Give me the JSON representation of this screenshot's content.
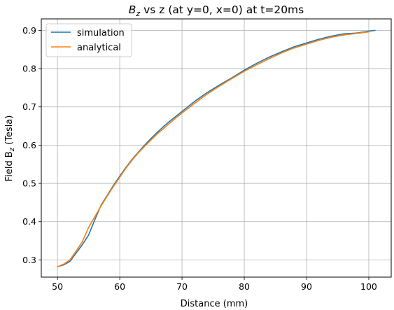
{
  "chart_data": {
    "type": "line",
    "title": {
      "prefix": "B",
      "subscript": "z",
      "rest": " vs z (at y=0, x=0) at t=20ms"
    },
    "xlabel": "Distance (mm)",
    "ylabel": {
      "prefix": "Field B",
      "subscript": "z",
      "rest": " (Tesla)"
    },
    "xlim": [
      47.4,
      103.6
    ],
    "ylim": [
      0.255,
      0.93
    ],
    "xticks": [
      50,
      60,
      70,
      80,
      90,
      100
    ],
    "yticks": [
      0.3,
      0.4,
      0.5,
      0.6,
      0.7,
      0.8,
      0.9
    ],
    "grid": true,
    "legend_position": "top-left",
    "series": [
      {
        "name": "simulation",
        "color": "#1f77b4",
        "x": [
          50,
          51,
          52,
          53,
          54,
          55,
          56,
          57,
          58,
          59,
          60,
          61,
          62,
          63,
          64,
          65,
          66,
          67,
          68,
          69,
          70,
          72,
          74,
          76,
          78,
          80,
          82,
          84,
          86,
          88,
          90,
          92,
          94,
          96,
          98,
          100,
          101
        ],
        "y": [
          0.282,
          0.287,
          0.296,
          0.318,
          0.34,
          0.365,
          0.405,
          0.443,
          0.469,
          0.495,
          0.519,
          0.542,
          0.563,
          0.582,
          0.6,
          0.617,
          0.633,
          0.648,
          0.662,
          0.675,
          0.688,
          0.714,
          0.737,
          0.757,
          0.776,
          0.796,
          0.814,
          0.83,
          0.844,
          0.857,
          0.867,
          0.877,
          0.885,
          0.891,
          0.893,
          0.898,
          0.9
        ]
      },
      {
        "name": "analytical",
        "color": "#ff7f0e",
        "x": [
          50,
          51,
          52,
          53,
          54,
          55,
          56,
          57,
          58,
          59,
          60,
          61,
          62,
          63,
          64,
          65,
          66,
          67,
          68,
          69,
          70,
          72,
          74,
          76,
          78,
          80,
          82,
          84,
          86,
          88,
          90,
          92,
          94,
          96,
          98,
          100
        ],
        "y": [
          0.282,
          0.289,
          0.3,
          0.323,
          0.348,
          0.385,
          0.413,
          0.441,
          0.467,
          0.492,
          0.516,
          0.54,
          0.561,
          0.58,
          0.597,
          0.613,
          0.629,
          0.643,
          0.657,
          0.671,
          0.684,
          0.709,
          0.733,
          0.754,
          0.774,
          0.793,
          0.81,
          0.826,
          0.841,
          0.854,
          0.864,
          0.874,
          0.882,
          0.888,
          0.892,
          0.896
        ]
      }
    ]
  }
}
